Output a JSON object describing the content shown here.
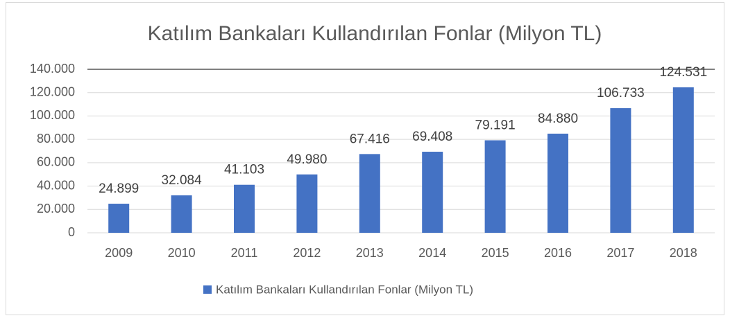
{
  "chart_data": {
    "type": "bar",
    "title": "Katılım Bankaları Kullandırılan Fonlar (Milyon TL)",
    "categories": [
      "2009",
      "2010",
      "2011",
      "2012",
      "2013",
      "2014",
      "2015",
      "2016",
      "2017",
      "2018"
    ],
    "series": [
      {
        "name": "Katılım Bankaları Kullandırılan Fonlar (Milyon TL)",
        "color": "#4472c4",
        "values": [
          24899,
          32084,
          41103,
          49980,
          67416,
          69408,
          79191,
          84880,
          106733,
          124531
        ],
        "value_labels": [
          "24.899",
          "32.084",
          "41.103",
          "49.980",
          "67.416",
          "69.408",
          "79.191",
          "84.880",
          "106.733",
          "124.531"
        ]
      }
    ],
    "ylim": [
      0,
      140000
    ],
    "yticks": [
      0,
      {
        "value": 20000,
        "label": "20.000"
      },
      {
        "value": 40000,
        "label": "40.000"
      },
      {
        "value": 60000,
        "label": "60.000"
      },
      {
        "value": 80000,
        "label": "80.000"
      },
      {
        "value": 100000,
        "label": "100.000"
      },
      {
        "value": 120000,
        "label": "120.000"
      },
      {
        "value": 140000,
        "label": "140.000"
      }
    ],
    "grid": true,
    "legend": "bottom"
  }
}
